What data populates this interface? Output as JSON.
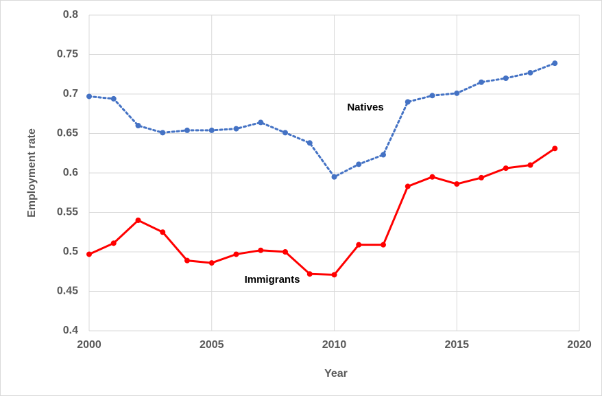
{
  "chart_data": {
    "type": "line",
    "x": [
      2000,
      2001,
      2002,
      2003,
      2004,
      2005,
      2006,
      2007,
      2008,
      2009,
      2010,
      2011,
      2012,
      2013,
      2014,
      2015,
      2016,
      2017,
      2018,
      2019
    ],
    "series": [
      {
        "name": "Natives",
        "color": "#4472c4",
        "style": "dotted",
        "values": [
          0.697,
          0.694,
          0.66,
          0.651,
          0.654,
          0.654,
          0.656,
          0.664,
          0.651,
          0.638,
          0.595,
          0.611,
          0.623,
          0.69,
          0.698,
          0.701,
          0.715,
          0.72,
          0.727,
          0.739
        ]
      },
      {
        "name": "Immigrants",
        "color": "#ff0000",
        "style": "solid",
        "values": [
          0.497,
          0.511,
          0.54,
          0.525,
          0.489,
          0.486,
          0.497,
          0.502,
          0.5,
          0.472,
          0.471,
          0.509,
          0.509,
          0.583,
          0.595,
          0.586,
          0.594,
          0.606,
          0.61,
          0.631
        ]
      }
    ],
    "xlabel": "Year",
    "ylabel": "Employment rate",
    "xlim": [
      2000,
      2020
    ],
    "xticks": [
      2000,
      2005,
      2010,
      2015,
      2020
    ],
    "ylim": [
      0.4,
      0.8
    ],
    "yticks": [
      0.4,
      0.45,
      0.5,
      0.55,
      0.6,
      0.65,
      0.7,
      0.75,
      0.8
    ],
    "grid": true
  }
}
